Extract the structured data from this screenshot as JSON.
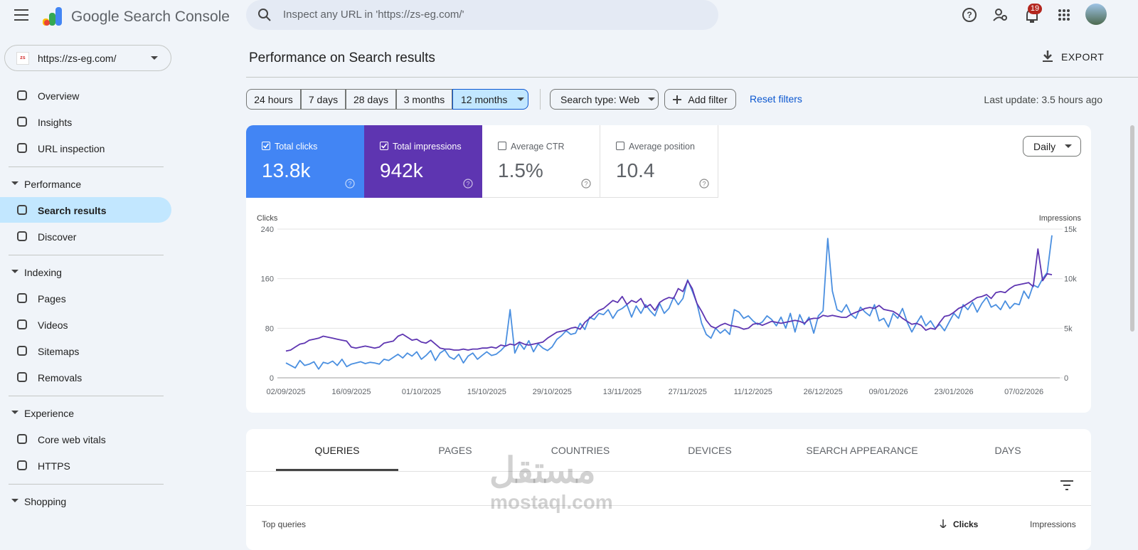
{
  "header": {
    "product": "Google Search Console",
    "search_placeholder": "Inspect any URL in 'https://zs-eg.com/'",
    "notifications": "19"
  },
  "property": "https://zs-eg.com/",
  "nav": [
    {
      "items": [
        "Overview",
        "Insights",
        "URL inspection"
      ]
    },
    {
      "heading": "Performance",
      "items": [
        "Search results",
        "Discover"
      ]
    },
    {
      "heading": "Indexing",
      "items": [
        "Pages",
        "Videos",
        "Sitemaps",
        "Removals"
      ]
    },
    {
      "heading": "Experience",
      "items": [
        "Core web vitals",
        "HTTPS"
      ]
    },
    {
      "heading": "Shopping",
      "items": []
    }
  ],
  "nav_active": [
    1,
    0
  ],
  "page": {
    "title": "Performance on Search results",
    "export": "EXPORT",
    "date_ranges": [
      "24 hours",
      "7 days",
      "28 days",
      "3 months",
      "12 months"
    ],
    "active_range": 4,
    "search_type": "Search type: Web",
    "add_filter": "Add filter",
    "reset_filters": "Reset filters",
    "last_update": "Last update: 3.5 hours ago",
    "interval": "Daily"
  },
  "metrics": [
    {
      "label": "Total clicks",
      "value": "13.8k",
      "checked": true,
      "color": "#4285f4"
    },
    {
      "label": "Total impressions",
      "value": "942k",
      "checked": true,
      "color": "#5e35b1"
    },
    {
      "label": "Average CTR",
      "value": "1.5%",
      "checked": false,
      "color": "#ffffff"
    },
    {
      "label": "Average position",
      "value": "10.4",
      "checked": false,
      "color": "#ffffff"
    }
  ],
  "chart_data": {
    "type": "line",
    "grid": true,
    "categories": [
      "02/09/2025",
      null,
      null,
      null,
      null,
      null,
      null,
      null,
      null,
      null,
      null,
      null,
      null,
      null,
      "16/09/2025",
      null,
      null,
      null,
      null,
      null,
      null,
      null,
      null,
      null,
      null,
      null,
      null,
      null,
      null,
      "01/10/2025",
      null,
      null,
      null,
      null,
      null,
      null,
      null,
      null,
      null,
      null,
      null,
      null,
      null,
      "15/10/2025",
      null,
      null,
      null,
      null,
      null,
      null,
      null,
      null,
      null,
      null,
      null,
      null,
      null,
      "29/10/2025",
      null,
      null,
      null,
      null,
      null,
      null,
      null,
      null,
      null,
      null,
      null,
      null,
      null,
      null,
      "13/11/2025",
      null,
      null,
      null,
      null,
      null,
      null,
      null,
      null,
      null,
      null,
      null,
      null,
      null,
      "27/11/2025",
      null,
      null,
      null,
      null,
      null,
      null,
      null,
      null,
      null,
      null,
      null,
      null,
      null,
      "11/12/2025",
      null,
      null,
      null,
      null,
      null,
      null,
      null,
      null,
      null,
      null,
      null,
      null,
      null,
      null,
      "26/12/2025",
      null,
      null,
      null,
      null,
      null,
      null,
      null,
      null,
      null,
      null,
      null,
      null,
      null,
      "09/01/2026",
      null,
      null,
      null,
      null,
      null,
      null,
      null,
      null,
      null,
      null,
      null,
      null,
      null,
      "23/01/2026",
      null,
      null,
      null,
      null,
      null,
      null,
      null,
      null,
      null,
      null,
      null,
      null,
      null,
      null,
      "07/02/2026",
      null,
      null,
      null,
      null,
      null,
      null
    ],
    "series": [
      {
        "name": "Clicks",
        "color": "#4a8fe0",
        "values": [
          24,
          20,
          16,
          28,
          20,
          22,
          26,
          14,
          25,
          23,
          27,
          20,
          30,
          18,
          22,
          24,
          26,
          23,
          25,
          24,
          22,
          30,
          28,
          33,
          38,
          32,
          40,
          35,
          42,
          30,
          36,
          44,
          28,
          40,
          45,
          34,
          30,
          38,
          24,
          35,
          40,
          30,
          36,
          42,
          36,
          38,
          44,
          52,
          110,
          40,
          56,
          46,
          60,
          42,
          55,
          48,
          44,
          50,
          62,
          68,
          76,
          70,
          72,
          88,
          78,
          98,
          94,
          104,
          102,
          110,
          96,
          108,
          112,
          118,
          98,
          116,
          104,
          118,
          108,
          100,
          120,
          104,
          112,
          130,
          118,
          128,
          158,
          140,
          120,
          88,
          70,
          64,
          80,
          72,
          78,
          70,
          110,
          106,
          96,
          100,
          92,
          86,
          90,
          100,
          94,
          84,
          98,
          80,
          104,
          74,
          102,
          86,
          98,
          72,
          100,
          108,
          225,
          140,
          110,
          106,
          118,
          102,
          96,
          114,
          106,
          100,
          118,
          92,
          96,
          82,
          104,
          96,
          112,
          90,
          74,
          88,
          100,
          84,
          92,
          80,
          86,
          76,
          90,
          104,
          96,
          118,
          110,
          122,
          106,
          120,
          130,
          114,
          118,
          110,
          124,
          112,
          120,
          118,
          140,
          128,
          150,
          146,
          160,
          170,
          230
        ]
      },
      {
        "name": "Impressions",
        "color": "#5e35b1",
        "axis": "y2",
        "values": [
          2700,
          2800,
          3100,
          3400,
          3500,
          3800,
          3900,
          4000,
          4200,
          4100,
          4000,
          3900,
          3800,
          3700,
          3100,
          3000,
          3100,
          3200,
          3100,
          3000,
          3100,
          3500,
          3600,
          3700,
          4200,
          4400,
          4100,
          3800,
          3900,
          3600,
          3500,
          3800,
          3400,
          3000,
          2900,
          2900,
          2800,
          2800,
          2900,
          2800,
          2900,
          2900,
          3000,
          3000,
          3100,
          3000,
          3300,
          3200,
          3400,
          3300,
          3600,
          3400,
          3300,
          3400,
          3500,
          3600,
          4000,
          4300,
          4600,
          4700,
          4800,
          5000,
          5100,
          4900,
          5600,
          6000,
          6400,
          6800,
          7000,
          7400,
          7800,
          7600,
          8200,
          7400,
          7800,
          7600,
          8000,
          7100,
          7400,
          6800,
          7600,
          7900,
          8100,
          8000,
          9000,
          8700,
          9800,
          9000,
          7500,
          6700,
          5800,
          5200,
          5000,
          5300,
          5500,
          5300,
          5200,
          5100,
          4900,
          5000,
          5400,
          5500,
          5300,
          5500,
          5700,
          5600,
          5500,
          5600,
          5700,
          5800,
          5700,
          5500,
          5900,
          6000,
          6000,
          6300,
          6200,
          6300,
          6200,
          6100,
          6100,
          6400,
          6600,
          6800,
          7000,
          7100,
          7000,
          7300,
          6900,
          6800,
          6700,
          6400,
          6000,
          5700,
          5400,
          5500,
          5300,
          4800,
          5000,
          4900,
          5600,
          6200,
          6300,
          6600,
          7000,
          7200,
          7500,
          7800,
          8100,
          8200,
          8400,
          8000,
          8600,
          8700,
          8600,
          9000,
          9300,
          9400,
          9500,
          9600,
          9200,
          13000,
          9800,
          10500,
          10400
        ]
      }
    ],
    "ylim": [
      0,
      240
    ],
    "yticks": [
      0,
      80,
      160,
      240
    ],
    "y2lim": [
      0,
      15000
    ],
    "y2ticks": [
      0,
      {
        "value": 5000,
        "label": "5k"
      },
      {
        "value": 10000,
        "label": "10k"
      },
      {
        "value": 15000,
        "label": "15k"
      }
    ]
  },
  "table": {
    "tabs": [
      "QUERIES",
      "PAGES",
      "COUNTRIES",
      "DEVICES",
      "SEARCH APPEARANCE",
      "DAYS"
    ],
    "active_tab": 0,
    "title": "Top queries",
    "columns": [
      "Clicks",
      "Impressions"
    ]
  },
  "watermark": {
    "arabic": "مستقل",
    "latin": "mostaql.com"
  }
}
